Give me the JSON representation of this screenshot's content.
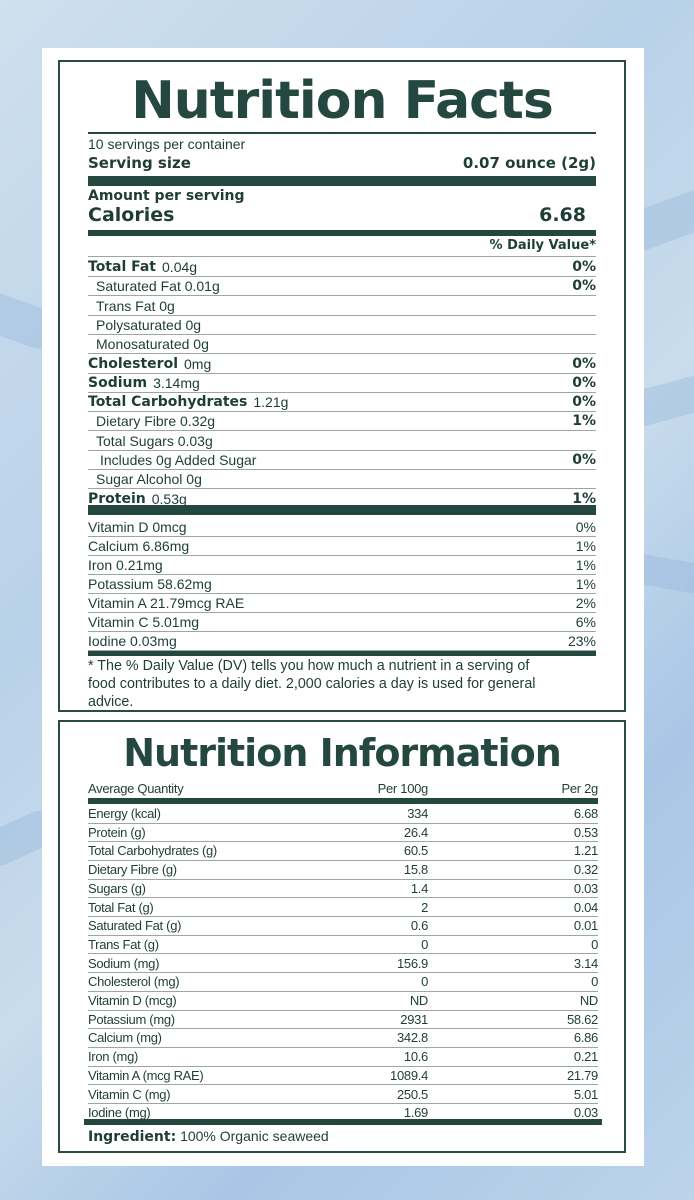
{
  "facts": {
    "title": "Nutrition Facts",
    "servings": "10 servings per container",
    "serving_size_label": "Serving size",
    "serving_size_value": "0.07 ounce (2g)",
    "amount_label": "Amount per serving",
    "calories_label": "Calories",
    "calories_value": "6.68",
    "dv_header": "% Daily Value*",
    "nutrients": [
      {
        "name": "Total Fat",
        "amount": "0.04g",
        "dv": "0%",
        "bold": true,
        "indent": 0
      },
      {
        "name": "Saturated Fat 0.01g",
        "amount": "",
        "dv": "0%",
        "bold": false,
        "indent": 1
      },
      {
        "name": "Trans Fat 0g",
        "amount": "",
        "dv": "",
        "bold": false,
        "indent": 1
      },
      {
        "name": "Polysaturated 0g",
        "amount": "",
        "dv": "",
        "bold": false,
        "indent": 1
      },
      {
        "name": "Monosaturated 0g",
        "amount": "",
        "dv": "",
        "bold": false,
        "indent": 1
      },
      {
        "name": "Cholesterol",
        "amount": "0mg",
        "dv": "0%",
        "bold": true,
        "indent": 0
      },
      {
        "name": "Sodium",
        "amount": "3.14mg",
        "dv": "0%",
        "bold": true,
        "indent": 0
      },
      {
        "name": "Total Carbohydrates",
        "amount": "1.21g",
        "dv": "0%",
        "bold": true,
        "indent": 0
      },
      {
        "name": "Dietary Fibre 0.32g",
        "amount": "",
        "dv": "1%",
        "bold": false,
        "indent": 1
      },
      {
        "name": "Total Sugars 0.03g",
        "amount": "",
        "dv": "",
        "bold": false,
        "indent": 1
      },
      {
        "name": "Includes 0g Added Sugar",
        "amount": "",
        "dv": "0%",
        "bold": false,
        "indent": 2
      },
      {
        "name": "Sugar Alcohol 0g",
        "amount": "",
        "dv": "",
        "bold": false,
        "indent": 1
      },
      {
        "name": "Protein",
        "amount": "0.53g",
        "dv": "1%",
        "bold": true,
        "indent": 0
      }
    ],
    "vitamins": [
      {
        "name": "Vitamin D 0mcg",
        "dv": "0%"
      },
      {
        "name": "Calcium 6.86mg",
        "dv": "1%"
      },
      {
        "name": "Iron 0.21mg",
        "dv": "1%"
      },
      {
        "name": "Potassium 58.62mg",
        "dv": "1%"
      },
      {
        "name": "Vitamin A 21.79mcg RAE",
        "dv": "2%"
      },
      {
        "name": "Vitamin C 5.01mg",
        "dv": "6%"
      },
      {
        "name": "Iodine 0.03mg",
        "dv": "23%"
      }
    ],
    "footnote_line1": "* The % Daily Value (DV) tells you how much a nutrient in a serving of",
    "footnote_line2": "food contributes to a daily diet. 2,000 calories a day is used for general",
    "footnote_line3": "advice."
  },
  "info": {
    "title": "Nutrition Information",
    "headers": [
      "Average Quantity",
      "Per 100g",
      "Per 2g"
    ],
    "rows": [
      [
        "Energy (kcal)",
        "334",
        "6.68"
      ],
      [
        "Protein (g)",
        "26.4",
        "0.53"
      ],
      [
        "Total Carbohydrates (g)",
        "60.5",
        "1.21"
      ],
      [
        "Dietary Fibre (g)",
        "15.8",
        "0.32"
      ],
      [
        "Sugars (g)",
        "1.4",
        "0.03"
      ],
      [
        "Total Fat (g)",
        "2",
        "0.04"
      ],
      [
        "Saturated Fat (g)",
        "0.6",
        "0.01"
      ],
      [
        "Trans Fat (g)",
        "0",
        "0"
      ],
      [
        "Sodium (mg)",
        "156.9",
        "3.14"
      ],
      [
        "Cholesterol (mg)",
        "0",
        "0"
      ],
      [
        "Vitamin D (mcg)",
        "ND",
        "ND"
      ],
      [
        "Potassium (mg)",
        "2931",
        "58.62"
      ],
      [
        "Calcium (mg)",
        "342.8",
        "6.86"
      ],
      [
        "Iron (mg)",
        "10.6",
        "0.21"
      ],
      [
        "Vitamin A (mcg RAE)",
        "1089.4",
        "21.79"
      ],
      [
        "Vitamin C (mg)",
        "250.5",
        "5.01"
      ],
      [
        "Iodine (mg)",
        "1.69",
        "0.03"
      ]
    ],
    "ingredient_label": "Ingredient:",
    "ingredient_value": "100% Organic seaweed"
  }
}
